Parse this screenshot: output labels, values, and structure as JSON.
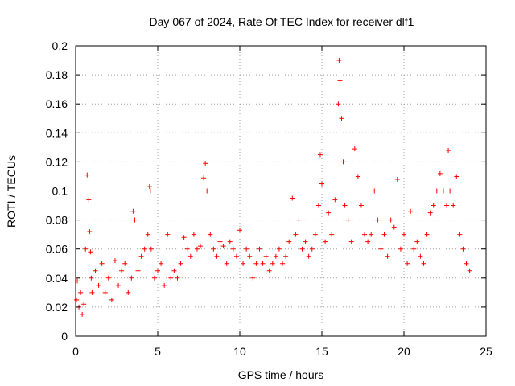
{
  "chart_data": {
    "type": "scatter",
    "title": "Day 067 of 2024, Rate Of TEC Index for receiver dlf1",
    "xlabel": "GPS time / hours",
    "ylabel": "ROTI / TECUs",
    "xlim": [
      0,
      25
    ],
    "ylim": [
      0,
      0.2
    ],
    "xticks": [
      0,
      5,
      10,
      15,
      20,
      25
    ],
    "xtick_labels": [
      "0",
      "5",
      "10",
      "15",
      "20",
      "25"
    ],
    "yticks": [
      0,
      0.02,
      0.04,
      0.06,
      0.08,
      0.1,
      0.12,
      0.14,
      0.16,
      0.18,
      0.2
    ],
    "ytick_labels": [
      "0",
      "0.02",
      "0.04",
      "0.06",
      "0.08",
      "0.1",
      "0.12",
      "0.14",
      "0.16",
      "0.18",
      "0.2"
    ],
    "grid": true,
    "legend": "none",
    "marker": "plus",
    "series": [
      {
        "color": "#ff0000",
        "x": [
          0.05,
          0.1,
          0.2,
          0.3,
          0.4,
          0.5,
          0.6,
          0.7,
          0.8,
          0.85,
          0.9,
          0.95,
          1.0,
          1.2,
          1.4,
          1.6,
          1.8,
          2.0,
          2.2,
          2.4,
          2.6,
          2.8,
          3.0,
          3.2,
          3.4,
          3.5,
          3.6,
          3.8,
          4.0,
          4.2,
          4.4,
          4.5,
          4.55,
          4.6,
          4.8,
          5.0,
          5.2,
          5.4,
          5.6,
          5.8,
          6.0,
          6.2,
          6.4,
          6.6,
          6.8,
          7.0,
          7.2,
          7.4,
          7.6,
          7.8,
          7.9,
          8.0,
          8.2,
          8.4,
          8.6,
          8.8,
          9.0,
          9.2,
          9.4,
          9.6,
          9.8,
          10.0,
          10.2,
          10.4,
          10.6,
          10.8,
          11.0,
          11.2,
          11.4,
          11.6,
          11.8,
          12.0,
          12.2,
          12.4,
          12.6,
          12.8,
          13.0,
          13.2,
          13.4,
          13.6,
          13.8,
          14.0,
          14.2,
          14.4,
          14.6,
          14.8,
          14.9,
          15.0,
          15.2,
          15.4,
          15.6,
          15.8,
          16.0,
          16.05,
          16.1,
          16.2,
          16.3,
          16.4,
          16.6,
          16.8,
          17.0,
          17.2,
          17.4,
          17.6,
          17.8,
          18.0,
          18.2,
          18.4,
          18.6,
          18.8,
          19.0,
          19.2,
          19.4,
          19.6,
          19.8,
          20.0,
          20.2,
          20.4,
          20.6,
          20.8,
          21.0,
          21.2,
          21.4,
          21.6,
          21.8,
          22.0,
          22.2,
          22.4,
          22.6,
          22.7,
          22.8,
          23.0,
          23.2,
          23.4,
          23.6,
          23.8,
          24.0
        ],
        "y": [
          0.025,
          0.038,
          0.02,
          0.03,
          0.015,
          0.022,
          0.06,
          0.111,
          0.094,
          0.072,
          0.058,
          0.04,
          0.03,
          0.045,
          0.035,
          0.05,
          0.03,
          0.04,
          0.025,
          0.052,
          0.035,
          0.045,
          0.05,
          0.03,
          0.04,
          0.086,
          0.08,
          0.045,
          0.055,
          0.06,
          0.07,
          0.103,
          0.1,
          0.06,
          0.04,
          0.045,
          0.05,
          0.035,
          0.07,
          0.04,
          0.045,
          0.04,
          0.05,
          0.068,
          0.06,
          0.055,
          0.07,
          0.06,
          0.062,
          0.109,
          0.119,
          0.1,
          0.07,
          0.06,
          0.055,
          0.065,
          0.062,
          0.05,
          0.065,
          0.06,
          0.055,
          0.073,
          0.05,
          0.06,
          0.055,
          0.04,
          0.05,
          0.06,
          0.05,
          0.055,
          0.045,
          0.05,
          0.055,
          0.06,
          0.05,
          0.055,
          0.065,
          0.095,
          0.07,
          0.08,
          0.06,
          0.065,
          0.055,
          0.06,
          0.07,
          0.09,
          0.125,
          0.105,
          0.065,
          0.085,
          0.07,
          0.094,
          0.16,
          0.19,
          0.176,
          0.15,
          0.12,
          0.09,
          0.08,
          0.065,
          0.129,
          0.11,
          0.09,
          0.07,
          0.065,
          0.07,
          0.1,
          0.08,
          0.06,
          0.07,
          0.055,
          0.08,
          0.075,
          0.108,
          0.06,
          0.07,
          0.05,
          0.086,
          0.06,
          0.065,
          0.055,
          0.05,
          0.07,
          0.085,
          0.09,
          0.1,
          0.112,
          0.1,
          0.09,
          0.128,
          0.1,
          0.09,
          0.11,
          0.07,
          0.06,
          0.05,
          0.045
        ]
      }
    ]
  }
}
